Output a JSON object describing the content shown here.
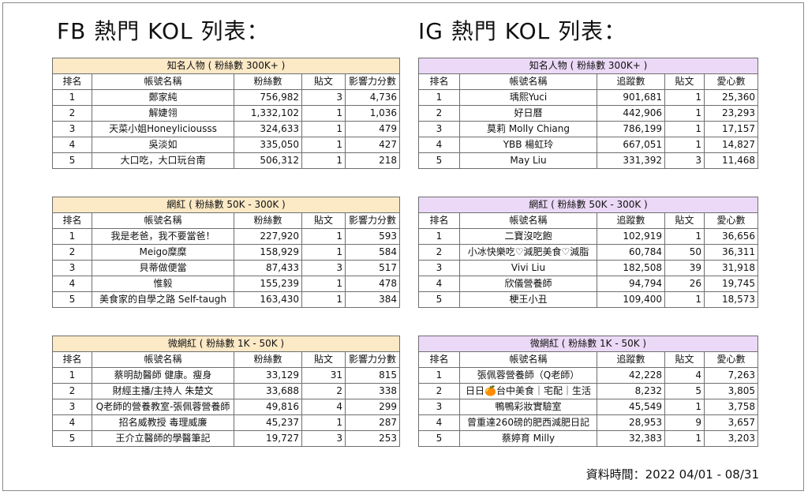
{
  "fb": {
    "heading": "FB 熱門 KOL 列表：",
    "sections": [
      {
        "caption": "知名人物 ( 粉絲數 300K+ )",
        "columns": [
          "排名",
          "帳號名稱",
          "粉絲數",
          "貼文",
          "影響力分數"
        ],
        "rows": [
          [
            "1",
            "鄭家純",
            "756,982",
            "3",
            "4,736"
          ],
          [
            "2",
            "解婕翎",
            "1,332,102",
            "1",
            "1,036"
          ],
          [
            "3",
            "天菜小姐Honeyliciousss",
            "324,633",
            "1",
            "479"
          ],
          [
            "4",
            "吳淡如",
            "335,050",
            "1",
            "427"
          ],
          [
            "5",
            "大口吃，大口玩台南",
            "506,312",
            "1",
            "218"
          ]
        ]
      },
      {
        "caption": "網紅 ( 粉絲數 50K - 300K )",
        "columns": [
          "排名",
          "帳號名稱",
          "粉絲數",
          "貼文",
          "影響力分數"
        ],
        "rows": [
          [
            "1",
            "我是老爸，我不要當爸！",
            "227,920",
            "1",
            "593"
          ],
          [
            "2",
            "Meigo糜糜",
            "158,929",
            "1",
            "584"
          ],
          [
            "3",
            "貝蒂做便當",
            "87,433",
            "3",
            "517"
          ],
          [
            "4",
            "惟毅",
            "155,239",
            "1",
            "478"
          ],
          [
            "5",
            "美食家的自學之路 Self-taugh",
            "163,430",
            "1",
            "384"
          ]
        ]
      },
      {
        "caption": "微網紅 ( 粉絲數 1K - 50K )",
        "columns": [
          "排名",
          "帳號名稱",
          "粉絲數",
          "貼文",
          "影響力分數"
        ],
        "rows": [
          [
            "1",
            "蔡明劼醫師 健康。瘦身",
            "33,129",
            "31",
            "815"
          ],
          [
            "2",
            "財經主播/主持人 朱楚文",
            "33,688",
            "2",
            "338"
          ],
          [
            "3",
            "Q老師的營養教室-張佩蓉營養師",
            "49,816",
            "4",
            "299"
          ],
          [
            "4",
            "招名威教授 毒理威廉",
            "45,237",
            "1",
            "287"
          ],
          [
            "5",
            "王介立醫師的學醫筆記",
            "19,727",
            "3",
            "253"
          ]
        ]
      }
    ]
  },
  "ig": {
    "heading": "IG 熱門 KOL 列表：",
    "sections": [
      {
        "caption": "知名人物 ( 粉絲數 300K+ )",
        "columns": [
          "排名",
          "帳號名稱",
          "追蹤數",
          "貼文",
          "愛心數"
        ],
        "rows": [
          [
            "1",
            "瑀熙Yuci",
            "901,681",
            "1",
            "25,360"
          ],
          [
            "2",
            "好日曆",
            "442,906",
            "1",
            "23,293"
          ],
          [
            "3",
            "莫莉 Molly Chiang",
            "786,199",
            "1",
            "17,157"
          ],
          [
            "4",
            "YBB 楊虹玲",
            "667,051",
            "1",
            "14,827"
          ],
          [
            "5",
            "May Liu",
            "331,392",
            "3",
            "11,468"
          ]
        ]
      },
      {
        "caption": "網紅 ( 粉絲數 50K - 300K )",
        "columns": [
          "排名",
          "帳號名稱",
          "追蹤數",
          "貼文",
          "愛心數"
        ],
        "rows": [
          [
            "1",
            "二寶沒吃飽",
            "102,919",
            "1",
            "36,656"
          ],
          [
            "2",
            "小冰快樂吃♡減肥美食♡減脂",
            "60,784",
            "50",
            "36,311"
          ],
          [
            "3",
            "Vivi Liu",
            "182,508",
            "39",
            "31,918"
          ],
          [
            "4",
            "欣儀營養師",
            "94,794",
            "26",
            "19,745"
          ],
          [
            "5",
            "梗王小丑",
            "109,400",
            "1",
            "18,573"
          ]
        ]
      },
      {
        "caption": "微網紅 ( 粉絲數 1K - 50K )",
        "columns": [
          "排名",
          "帳號名稱",
          "追蹤數",
          "貼文",
          "愛心數"
        ],
        "rows": [
          [
            "1",
            "張佩蓉營養師（Q老師）",
            "42,228",
            "4",
            "7,263"
          ],
          [
            "2",
            "日日🍊台中美食｜宅配｜生活",
            "8,232",
            "5",
            "3,805"
          ],
          [
            "3",
            "鴨鴨彩妝實驗室",
            "45,549",
            "1",
            "3,758"
          ],
          [
            "4",
            "曾重達260磅的肥西減肥日記",
            "28,953",
            "9",
            "3,657"
          ],
          [
            "5",
            "蔡婷育 Milly",
            "32,383",
            "1",
            "3,203"
          ]
        ]
      }
    ]
  },
  "footer": "資料時間：2022 04/01 - 08/31"
}
